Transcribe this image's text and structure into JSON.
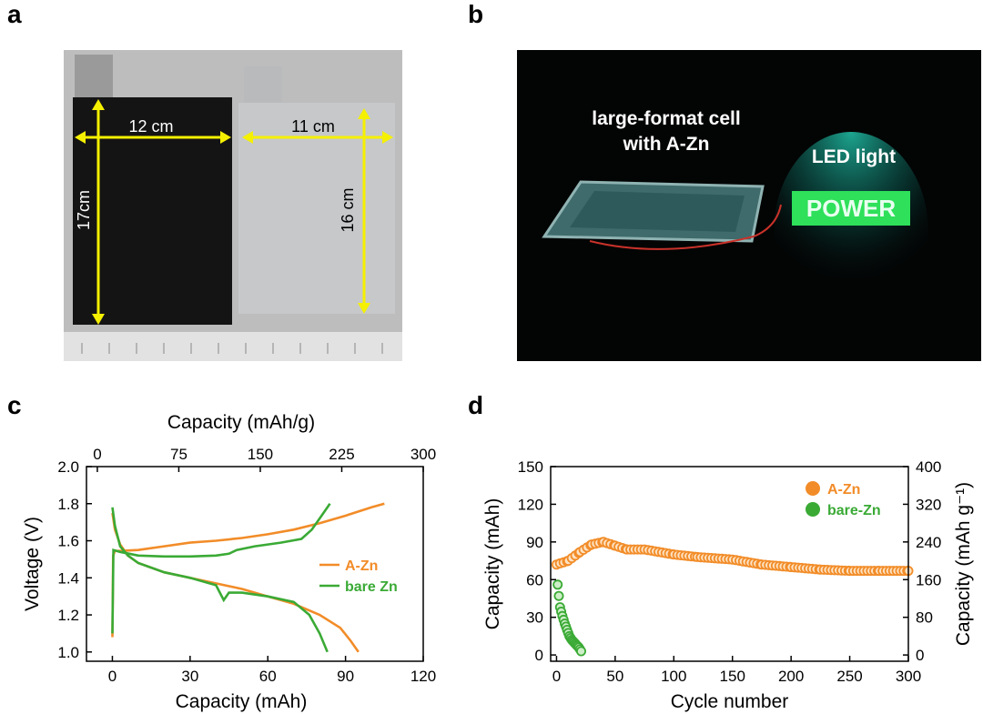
{
  "panels": {
    "a": "a",
    "b": "b",
    "c": "c",
    "d": "d"
  },
  "photo_a": {
    "width_left": "12 cm",
    "height_left": "17cm",
    "width_right": "11 cm",
    "height_right": "16 cm",
    "colors": {
      "background": "#b9b9b9",
      "cloth": "#151414",
      "foil": "#c8cacb",
      "arrow": "#f5f000"
    }
  },
  "photo_b": {
    "cell_label_line1": "large-format cell",
    "cell_label_line2": "with A-Zn",
    "led_label": "LED light",
    "led_text": "POWER",
    "colors": {
      "background": "#030404",
      "led": "#2ee05a",
      "glow": "#19a891"
    }
  },
  "chart_data": [
    {
      "type": "line",
      "xlabel": "Capacity (mAh)",
      "x2label": "Capacity (mAh/g)",
      "ylabel": "Voltage (V)",
      "xlim": [
        -10,
        120
      ],
      "x2lim": [
        -10,
        300
      ],
      "ylim": [
        0.95,
        2.0
      ],
      "xticks": [
        "0",
        "30",
        "60",
        "90",
        "120"
      ],
      "x2ticks": [
        "0",
        "75",
        "150",
        "225",
        "300"
      ],
      "yticks": [
        "1.0",
        "1.2",
        "1.4",
        "1.6",
        "1.8",
        "2.0"
      ],
      "legend": "right",
      "series": [
        {
          "name": "A-Zn",
          "color": "#f28c28",
          "charge": [
            [
              0,
              1.08
            ],
            [
              0.3,
              1.52
            ],
            [
              1,
              1.545
            ],
            [
              3,
              1.545
            ],
            [
              10,
              1.55
            ],
            [
              20,
              1.57
            ],
            [
              30,
              1.59
            ],
            [
              40,
              1.6
            ],
            [
              50,
              1.615
            ],
            [
              60,
              1.635
            ],
            [
              70,
              1.66
            ],
            [
              80,
              1.695
            ],
            [
              90,
              1.735
            ],
            [
              100,
              1.78
            ],
            [
              105,
              1.8
            ]
          ],
          "discharge": [
            [
              0,
              1.75
            ],
            [
              1,
              1.66
            ],
            [
              3,
              1.58
            ],
            [
              6,
              1.52
            ],
            [
              10,
              1.48
            ],
            [
              20,
              1.43
            ],
            [
              30,
              1.4
            ],
            [
              40,
              1.37
            ],
            [
              50,
              1.34
            ],
            [
              60,
              1.3
            ],
            [
              70,
              1.26
            ],
            [
              80,
              1.2
            ],
            [
              88,
              1.13
            ],
            [
              92,
              1.06
            ],
            [
              95,
              1.0
            ]
          ]
        },
        {
          "name": "bare Zn",
          "color": "#3aaa35",
          "charge": [
            [
              0,
              1.1
            ],
            [
              0.4,
              1.55
            ],
            [
              3,
              1.54
            ],
            [
              10,
              1.52
            ],
            [
              20,
              1.515
            ],
            [
              30,
              1.515
            ],
            [
              40,
              1.52
            ],
            [
              45,
              1.53
            ],
            [
              48,
              1.55
            ],
            [
              55,
              1.57
            ],
            [
              65,
              1.59
            ],
            [
              73,
              1.61
            ],
            [
              77,
              1.66
            ],
            [
              81,
              1.74
            ],
            [
              84,
              1.8
            ]
          ],
          "discharge": [
            [
              0,
              1.78
            ],
            [
              1,
              1.68
            ],
            [
              3,
              1.57
            ],
            [
              6,
              1.52
            ],
            [
              10,
              1.48
            ],
            [
              20,
              1.43
            ],
            [
              30,
              1.4
            ],
            [
              40,
              1.36
            ],
            [
              43,
              1.28
            ],
            [
              45,
              1.32
            ],
            [
              50,
              1.32
            ],
            [
              60,
              1.3
            ],
            [
              70,
              1.27
            ],
            [
              76,
              1.2
            ],
            [
              80,
              1.1
            ],
            [
              83,
              1.0
            ]
          ]
        }
      ]
    },
    {
      "type": "scatter",
      "xlabel": "Cycle number",
      "ylabel": "Capacity (mAh)",
      "y2label": "Capacity (mAh g⁻¹)",
      "xlim": [
        -5,
        300
      ],
      "ylim": [
        -5,
        150
      ],
      "y2lim": [
        -13.3,
        400
      ],
      "xticks": [
        "0",
        "50",
        "100",
        "150",
        "200",
        "250",
        "300"
      ],
      "yticks": [
        "0",
        "30",
        "60",
        "90",
        "120",
        "150"
      ],
      "y2ticks": [
        "0",
        "80",
        "160",
        "240",
        "320",
        "400"
      ],
      "legend": "top-right",
      "series": [
        {
          "name": "A-Zn",
          "color": "#f28c28",
          "points": [
            [
              0,
              72
            ],
            [
              10,
              75
            ],
            [
              20,
              82
            ],
            [
              30,
              88
            ],
            [
              40,
              90
            ],
            [
              50,
              87
            ],
            [
              60,
              84
            ],
            [
              75,
              84
            ],
            [
              100,
              80
            ],
            [
              120,
              78
            ],
            [
              150,
              76
            ],
            [
              175,
              72
            ],
            [
              200,
              70
            ],
            [
              225,
              68
            ],
            [
              250,
              67
            ],
            [
              275,
              67
            ],
            [
              300,
              67
            ]
          ]
        },
        {
          "name": "bare-Zn",
          "color": "#3aaa35",
          "points": [
            [
              1,
              56
            ],
            [
              3,
              38
            ],
            [
              5,
              31
            ],
            [
              7,
              25
            ],
            [
              9,
              20
            ],
            [
              11,
              15
            ],
            [
              13,
              12
            ],
            [
              15,
              10
            ],
            [
              17,
              8
            ],
            [
              19,
              6
            ],
            [
              21,
              3
            ]
          ]
        }
      ]
    }
  ]
}
